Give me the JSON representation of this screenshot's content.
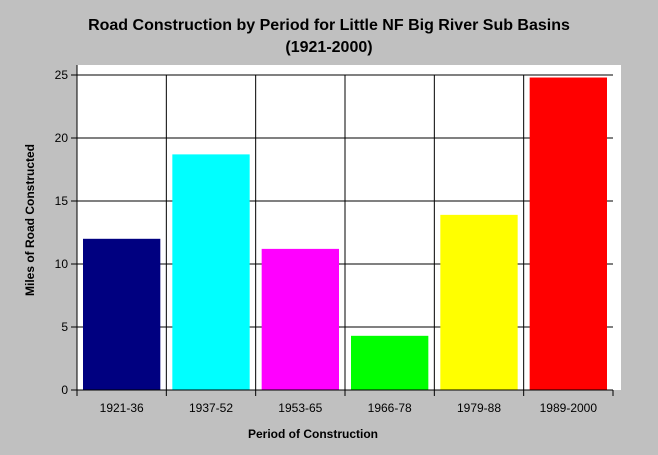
{
  "chart_data": {
    "type": "bar",
    "title": "Road Construction by Period for Little NF Big River Sub Basins",
    "subtitle": "(1921-2000)",
    "xlabel": "Period of Construction",
    "ylabel": "Miles of Road Constructed",
    "categories": [
      "1921-36",
      "1937-52",
      "1953-65",
      "1966-78",
      "1979-88",
      "1989-2000"
    ],
    "values": [
      12.0,
      18.7,
      11.2,
      4.3,
      13.9,
      24.8
    ],
    "colors": [
      "#000080",
      "#00ffff",
      "#ff00ff",
      "#00ff00",
      "#ffff00",
      "#ff0000"
    ],
    "ylim": [
      0,
      25
    ],
    "yticks": [
      "0",
      "5",
      "10",
      "15",
      "20",
      "25"
    ],
    "grid": true,
    "background": "#c0c0c0",
    "plot_background": "#ffffff"
  }
}
